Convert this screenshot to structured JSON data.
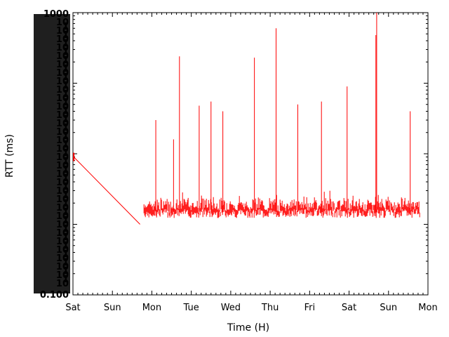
{
  "chart_data": {
    "type": "line",
    "title": "",
    "xlabel": "Time (H)",
    "ylabel": "RTT (ms)",
    "x_ticks": [
      "Sat",
      "Sun",
      "Mon",
      "Tue",
      "Wed",
      "Thu",
      "Fri",
      "Sat",
      "Sun",
      "Mon"
    ],
    "y_tick_labels_top": "1000",
    "y_tick_labels_bottom": "0.100",
    "grid": false,
    "legend": "none",
    "series": [
      {
        "color": "#ff0000",
        "notes_days_from_sat": [
          0.0,
          8.8
        ],
        "segments": [
          {
            "start_day": 0.02,
            "end_day": 1.7,
            "start_rtt": 9,
            "end_rtt": 1
          },
          {
            "start_day": 1.8,
            "end_day": 8.8,
            "baseline": 1.5
          }
        ],
        "spikes": [
          {
            "day": 2.1,
            "rtt": 30
          },
          {
            "day": 2.55,
            "rtt": 16
          },
          {
            "day": 2.7,
            "rtt": 240
          },
          {
            "day": 3.2,
            "rtt": 48
          },
          {
            "day": 3.5,
            "rtt": 55
          },
          {
            "day": 3.8,
            "rtt": 40
          },
          {
            "day": 4.6,
            "rtt": 230
          },
          {
            "day": 5.15,
            "rtt": 600
          },
          {
            "day": 5.7,
            "rtt": 50
          },
          {
            "day": 6.3,
            "rtt": 55
          },
          {
            "day": 6.95,
            "rtt": 90
          },
          {
            "day": 7.7,
            "rtt": 1000
          },
          {
            "day": 7.68,
            "rtt": 480
          },
          {
            "day": 8.55,
            "rtt": 40
          }
        ]
      }
    ]
  }
}
